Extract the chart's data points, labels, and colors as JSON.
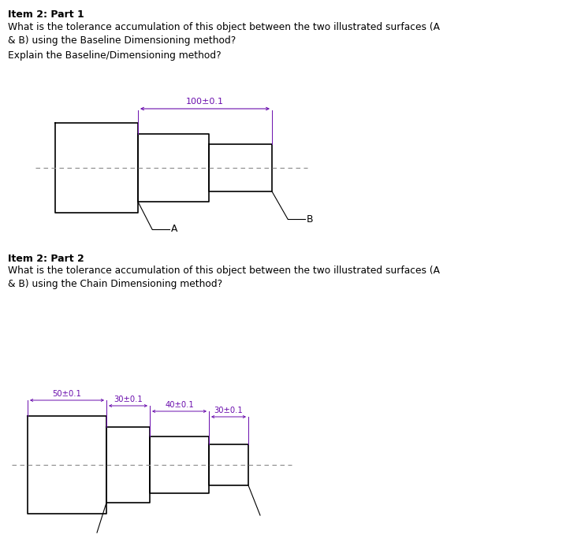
{
  "title1": "Item 2: Part 1",
  "text1": "What is the tolerance accumulation of this object between the two illustrated surfaces (A\n& B) using the Baseline Dimensioning method?",
  "text2": "Explain the Baseline/Dimensioning method?",
  "title2": "Item 2: Part 2",
  "text3": "What is the tolerance accumulation of this object between the two illustrated surfaces (A\n& B) using the Chain Dimensioning method?",
  "dim_color": "#6a0dad",
  "line_color": "#000000",
  "dash_color": "#888888",
  "bg_color": "#ffffff",
  "font_size_title": 9,
  "font_size_text": 8.8,
  "font_size_dim": 8.0
}
